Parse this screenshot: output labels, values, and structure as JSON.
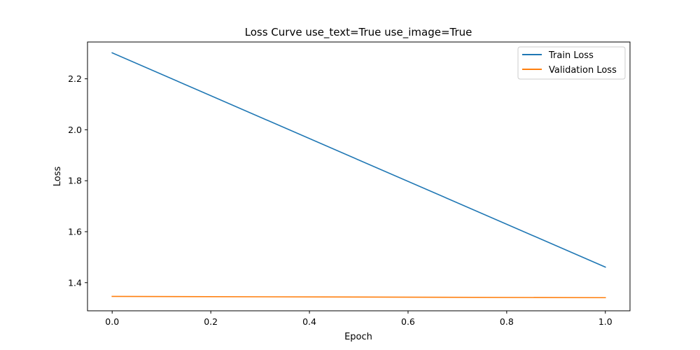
{
  "chart_data": {
    "type": "line",
    "title": "Loss Curve use_text=True use_image=True",
    "xlabel": "Epoch",
    "ylabel": "Loss",
    "xlim": [
      -0.05,
      1.05
    ],
    "ylim": [
      1.2895,
      2.3445
    ],
    "x_ticks": [
      0.0,
      0.2,
      0.4,
      0.6,
      0.8,
      1.0
    ],
    "x_tick_labels": [
      "0.0",
      "0.2",
      "0.4",
      "0.6",
      "0.8",
      "1.0"
    ],
    "y_ticks": [
      1.4,
      1.6,
      1.8,
      2.0,
      2.2
    ],
    "y_tick_labels": [
      "1.4",
      "1.6",
      "1.8",
      "2.0",
      "2.2"
    ],
    "grid": false,
    "legend_position": "top-right",
    "series": [
      {
        "name": "Train Loss",
        "color": "#1f77b4",
        "x": [
          0,
          1
        ],
        "y": [
          2.302,
          1.461
        ]
      },
      {
        "name": "Validation Loss",
        "color": "#ff7f0e",
        "x": [
          0,
          1
        ],
        "y": [
          1.346,
          1.341
        ]
      }
    ]
  }
}
